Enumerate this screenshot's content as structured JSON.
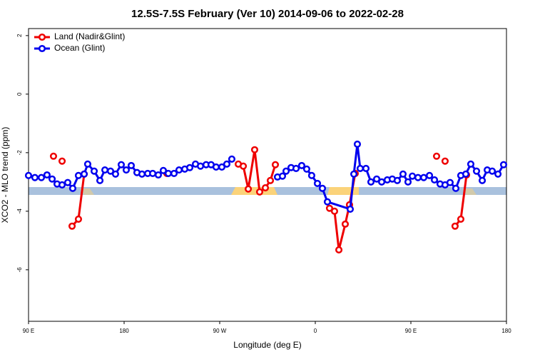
{
  "chart_data": {
    "type": "line",
    "title": "12.5S-7.5S February (Ver 10)   2014-09-06 to 2022-02-28",
    "x_label": "Longitude (deg E)",
    "y_label": "XCO2 - MLO trend (ppm)",
    "xlim": [
      90,
      540
    ],
    "xticks": [
      {
        "value": 90,
        "label": "90 E"
      },
      180,
      {
        "value": 270,
        "label": "90 W"
      },
      {
        "value": 360,
        "label": "0"
      },
      {
        "value": 450,
        "label": "90 E"
      },
      {
        "value": 540,
        "label": "180"
      }
    ],
    "ylim": [
      -7.76,
      2.24
    ],
    "yticks": [
      2,
      0,
      -2,
      -4,
      -6
    ],
    "legend": "upper left",
    "series": [
      {
        "name": "Land (Nadir&Glint)",
        "color": "#ee0000",
        "x": [
          113.5,
          null,
          121.6,
          null,
          131.0,
          137.0,
          142.4,
          null,
          220.3,
          null,
          287.5,
          292.2,
          296.9,
          302.9,
          307.6,
          313.0,
          317.7,
          322.4,
          null,
          373.4,
          378.1,
          382.2,
          388.2,
          392.2,
          397.6,
          null,
          474.2,
          null,
          482.2,
          null,
          491.6,
          497.0,
          502.4
        ],
        "values": [
          -2.12,
          null,
          -2.29,
          null,
          -4.51,
          -4.27,
          -2.73,
          null,
          -2.71,
          null,
          -2.39,
          -2.46,
          -3.24,
          -1.9,
          -3.34,
          -3.2,
          -2.95,
          -2.41,
          null,
          -3.9,
          -4.0,
          -5.32,
          -4.44,
          -3.78,
          -2.71,
          null,
          -2.12,
          null,
          -2.29,
          null,
          -4.51,
          -4.27,
          -2.76
        ]
      },
      {
        "name": "Ocean (Glint)",
        "color": "#0000ee",
        "x": [
          90,
          96.0,
          102.1,
          107.4,
          112.2,
          116.9,
          121.6,
          126.9,
          131.6,
          137.0,
          142.4,
          145.7,
          151.8,
          157.2,
          161.9,
          167.2,
          171.9,
          177.3,
          182.0,
          186.7,
          192.1,
          196.8,
          202.2,
          206.9,
          212.2,
          216.9,
          221.6,
          227.0,
          231.7,
          237.1,
          241.8,
          247.2,
          251.9,
          257.2,
          261.9,
          266.6,
          272.0,
          276.7,
          281.4,
          null,
          324.4,
          329.1,
          332.5,
          337.2,
          341.9,
          347.2,
          351.9,
          356.6,
          362.0,
          366.7,
          371.4,
          392.9,
          396.3,
          399.6,
          402.3,
          407.7,
          412.4,
          417.8,
          422.5,
          427.8,
          432.5,
          437.2,
          442.6,
          447.3,
          451.4,
          456.7,
          462.1,
          467.5,
          472.2,
          477.5,
          482.2,
          486.9,
          492.3,
          497.0,
          501.7,
          506.4,
          511.8,
          517.2,
          521.9,
          526.6,
          532.0,
          537.3
        ],
        "values": [
          -2.78,
          -2.85,
          -2.85,
          -2.76,
          -2.9,
          -3.07,
          -3.1,
          -3.02,
          -3.22,
          -2.78,
          -2.73,
          -2.39,
          -2.63,
          -2.95,
          -2.59,
          -2.63,
          -2.73,
          -2.41,
          -2.59,
          -2.44,
          -2.68,
          -2.73,
          -2.71,
          -2.71,
          -2.76,
          -2.61,
          -2.71,
          -2.71,
          -2.59,
          -2.56,
          -2.51,
          -2.39,
          -2.46,
          -2.41,
          -2.41,
          -2.49,
          -2.49,
          -2.39,
          -2.22,
          null,
          -2.83,
          -2.8,
          -2.63,
          -2.51,
          -2.54,
          -2.44,
          -2.56,
          -2.78,
          -3.05,
          -3.22,
          -3.68,
          -3.93,
          -2.73,
          -1.71,
          -2.54,
          -2.54,
          -3.0,
          -2.9,
          -3.0,
          -2.93,
          -2.9,
          -2.95,
          -2.73,
          -3.0,
          -2.8,
          -2.85,
          -2.85,
          -2.78,
          -2.93,
          -3.07,
          -3.1,
          -3.02,
          -3.22,
          -2.78,
          -2.73,
          -2.39,
          -2.63,
          -2.95,
          -2.59,
          -2.63,
          -2.73,
          -2.41
        ]
      }
    ]
  }
}
